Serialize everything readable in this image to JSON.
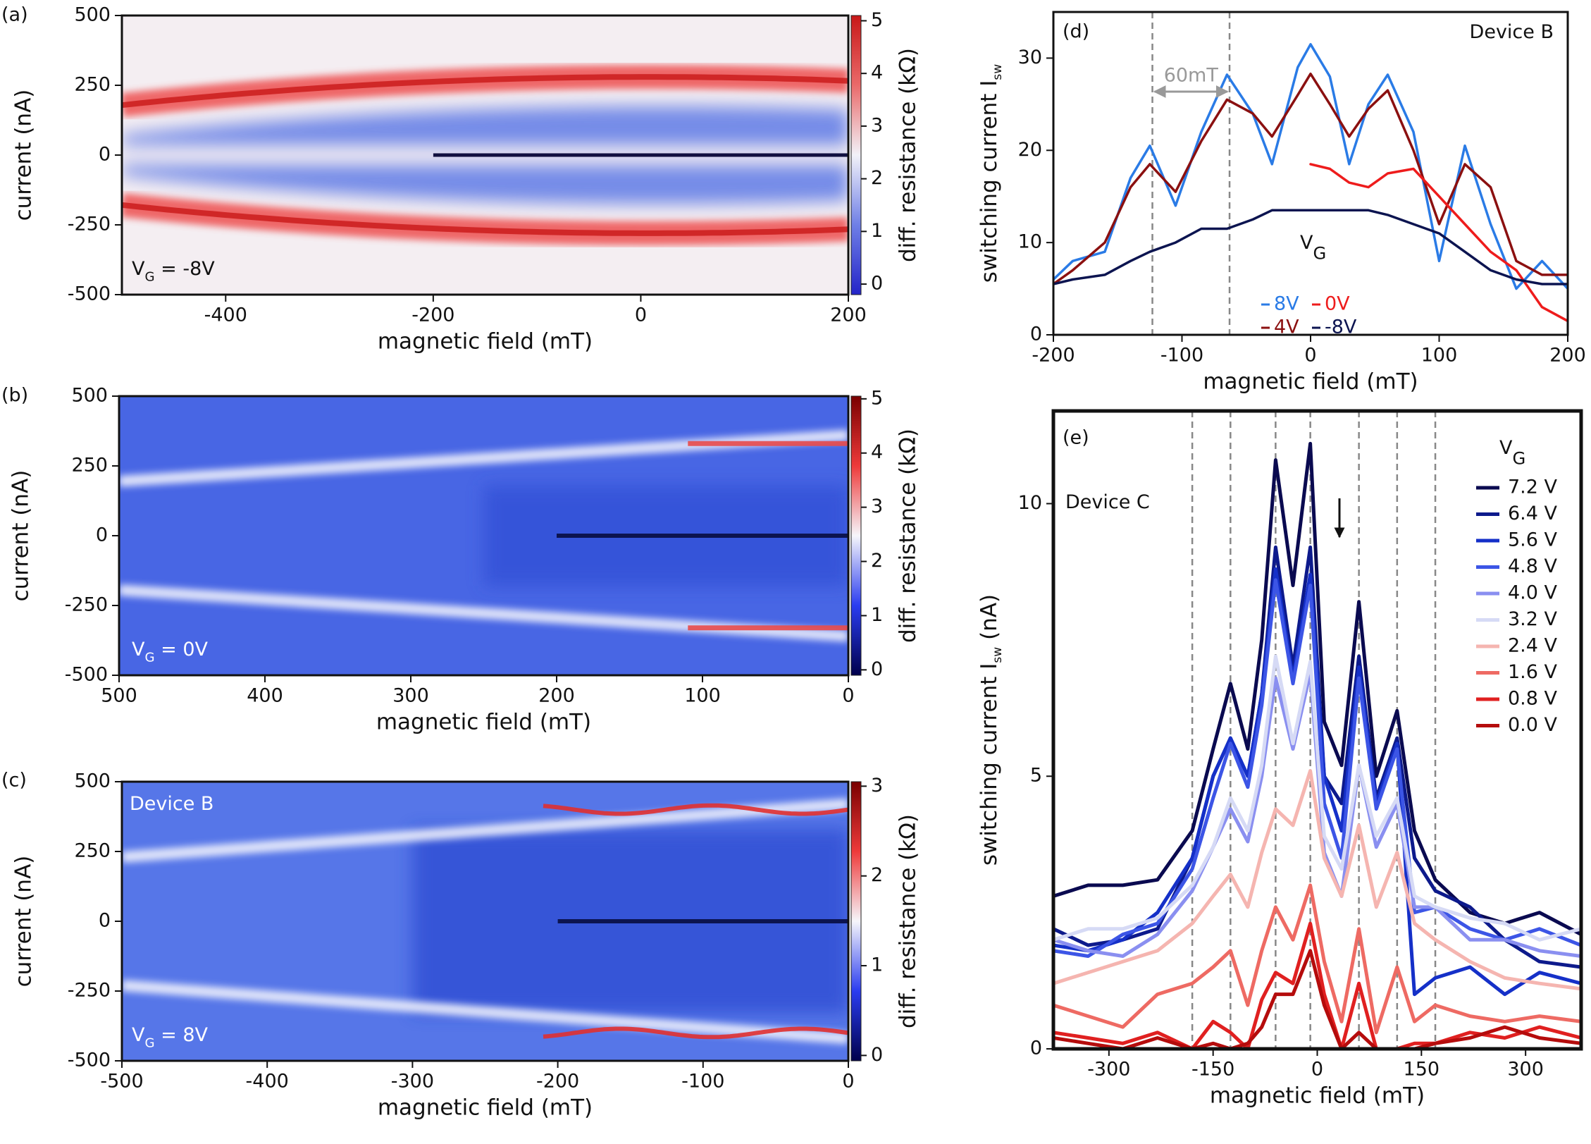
{
  "chart_data": [
    {
      "type": "heatmap",
      "panel_label": "(a)",
      "x_label": "magnetic field (mT)",
      "y_label": "current (nA)",
      "annotations": [
        {
          "main": "V",
          "sub": "G",
          "rest": " = -8V",
          "color": "#111111"
        }
      ],
      "xlim": [
        -500,
        200
      ],
      "ylim": [
        -500,
        500
      ],
      "xticks": [
        -400,
        -200,
        0,
        200
      ],
      "yticks": [
        -500,
        -250,
        0,
        250,
        500
      ],
      "colorbar": {
        "label": "diff. resistance (kΩ)",
        "lim": [
          -0.2,
          5.1
        ],
        "ticks": [
          0,
          1,
          2,
          3,
          4,
          5
        ],
        "colors": [
          "#2424c8",
          "#6f7fe6",
          "#f2f2f8",
          "#ea6a6a",
          "#c81818"
        ]
      }
    },
    {
      "type": "heatmap",
      "panel_label": "(b)",
      "x_label": "magnetic field (mT)",
      "y_label": "current (nA)",
      "annotations": [
        {
          "main": "V",
          "sub": "G",
          "rest": " = 0V",
          "color": "#ffffff"
        }
      ],
      "xlim": [
        500,
        0
      ],
      "ylim": [
        -500,
        500
      ],
      "xticks": [
        500,
        400,
        300,
        200,
        100,
        0
      ],
      "yticks": [
        -500,
        -250,
        0,
        250,
        500
      ],
      "colorbar": {
        "label": "diff. resistance (kΩ)",
        "lim": [
          -0.1,
          5.05
        ],
        "ticks": [
          0,
          1,
          2,
          3,
          4,
          5
        ],
        "colors": [
          "#00004c",
          "#2a3cf0",
          "#f6f6fb",
          "#ee3a3a",
          "#7a0000"
        ]
      }
    },
    {
      "type": "heatmap",
      "panel_label": "(c)",
      "x_label": "magnetic field (mT)",
      "y_label": "current (nA)",
      "annotations": [
        {
          "main": "Device B",
          "color": "#ffffff"
        },
        {
          "main": "V",
          "sub": "G",
          "rest": " = 8V",
          "color": "#ffffff"
        }
      ],
      "xlim": [
        -500,
        0
      ],
      "ylim": [
        -500,
        500
      ],
      "xticks": [
        -500,
        -400,
        -300,
        -200,
        -100,
        0
      ],
      "yticks": [
        -500,
        -250,
        0,
        250,
        500
      ],
      "colorbar": {
        "label": "diff. resistance (kΩ)",
        "lim": [
          -0.06,
          3.05
        ],
        "ticks": [
          0,
          1,
          2,
          3
        ],
        "colors": [
          "#00004c",
          "#2a3cf0",
          "#f6f6fb",
          "#ee3a3a",
          "#7a0000"
        ]
      }
    },
    {
      "type": "line",
      "panel_label": "(d)",
      "x_label": "magnetic field (mT)",
      "y_label": {
        "main": "switching current  I",
        "sub": "sw"
      },
      "annotations": [
        {
          "main": "Device B",
          "color": "#111111"
        }
      ],
      "span_label": "60mT",
      "legend_title": {
        "main": "V",
        "sub": "G"
      },
      "xlim": [
        -200,
        200
      ],
      "ylim": [
        0,
        35
      ],
      "xticks": [
        -200,
        -100,
        0,
        100,
        200
      ],
      "yticks": [
        0,
        10,
        20,
        30
      ],
      "vlines": [
        -123,
        -63
      ],
      "x": [
        -200,
        -185,
        -160,
        -140,
        -125,
        -105,
        -85,
        -65,
        -45,
        -30,
        -10,
        0,
        15,
        30,
        45,
        60,
        80,
        100,
        120,
        140,
        160,
        180,
        200
      ],
      "series": [
        {
          "name": "8V",
          "color": "#2a7be6",
          "values": [
            6,
            8,
            9,
            17,
            20.5,
            14,
            22,
            28.2,
            24,
            18.5,
            29,
            31.5,
            28,
            18.5,
            25,
            28.2,
            22,
            8,
            20.5,
            12,
            5,
            8,
            5
          ]
        },
        {
          "name": "4V",
          "color": "#8b1010",
          "values": [
            5.5,
            7,
            10,
            16,
            18.5,
            15.5,
            21,
            25.5,
            24,
            21.5,
            26,
            28.3,
            25,
            21.5,
            24.5,
            26.5,
            20,
            12,
            18.5,
            16,
            8,
            6.5,
            6.5
          ]
        },
        {
          "name": "0V",
          "color": "#ee1c1c",
          "values": [
            null,
            null,
            null,
            null,
            null,
            null,
            null,
            null,
            null,
            null,
            null,
            18.5,
            18,
            16.5,
            16,
            17.5,
            18,
            15,
            12,
            9,
            7,
            3,
            1.5
          ]
        },
        {
          "name": "-8V",
          "color": "#0c1450",
          "values": [
            5.5,
            6,
            6.5,
            8,
            9,
            10,
            11.5,
            11.5,
            12.5,
            13.5,
            13.5,
            13.5,
            13.5,
            13.5,
            13.5,
            13,
            12,
            11,
            9,
            7,
            6,
            5.5,
            5.5
          ]
        }
      ]
    },
    {
      "type": "line",
      "panel_label": "(e)",
      "x_label": "magnetic field (mT)",
      "y_label": {
        "main": "switching current  I",
        "sub": "sw",
        "rest": " (nA)"
      },
      "annotations": [
        {
          "main": "Device C",
          "color": "#111111"
        }
      ],
      "legend_title": {
        "main": "V",
        "sub": "G"
      },
      "xlim": [
        -380,
        380
      ],
      "ylim": [
        0,
        11.7
      ],
      "xticks": [
        -300,
        -150,
        0,
        150,
        300
      ],
      "yticks": [
        0,
        5,
        10
      ],
      "vlines": [
        -180,
        -125,
        -60,
        -10,
        60,
        115,
        170
      ],
      "x": [
        -380,
        -330,
        -280,
        -230,
        -180,
        -150,
        -125,
        -100,
        -80,
        -60,
        -35,
        -10,
        10,
        35,
        60,
        85,
        115,
        140,
        170,
        220,
        270,
        320,
        380
      ],
      "series": [
        {
          "name": "7.2 V",
          "color": "#0a0a50",
          "values": [
            2.8,
            3.0,
            3.0,
            3.1,
            4.0,
            5.5,
            6.7,
            5.5,
            7.5,
            10.8,
            8.5,
            11.1,
            6.0,
            5.2,
            8.2,
            5.0,
            6.2,
            4.0,
            3.1,
            2.5,
            2.3,
            2.5,
            2.1
          ]
        },
        {
          "name": "6.4 V",
          "color": "#0d1a8c",
          "values": [
            2.2,
            1.9,
            2.0,
            2.2,
            3.5,
            5.0,
            5.7,
            5.0,
            6.5,
            9.2,
            7.0,
            9.2,
            5.0,
            4.5,
            7.2,
            4.6,
            5.7,
            3.5,
            2.9,
            2.6,
            2.0,
            1.6,
            1.5
          ]
        },
        {
          "name": "5.6 V",
          "color": "#1530c8",
          "values": [
            1.9,
            1.8,
            2.0,
            2.5,
            3.5,
            5.0,
            5.7,
            5.0,
            6.5,
            8.8,
            6.8,
            8.7,
            5.0,
            4.0,
            7.0,
            4.5,
            5.6,
            1.0,
            1.3,
            1.5,
            1.0,
            1.4,
            1.2
          ]
        },
        {
          "name": "4.8 V",
          "color": "#3c55e6",
          "values": [
            1.8,
            1.7,
            2.1,
            2.3,
            3.3,
            4.6,
            5.6,
            4.8,
            6.3,
            8.6,
            6.7,
            8.5,
            4.5,
            3.5,
            6.8,
            4.4,
            5.5,
            2.5,
            2.6,
            2.2,
            2.0,
            2.2,
            1.9
          ]
        },
        {
          "name": "4.0 V",
          "color": "#8a8ff0",
          "values": [
            2.0,
            1.8,
            1.7,
            2.1,
            2.9,
            3.7,
            4.4,
            3.8,
            5.0,
            6.8,
            5.5,
            6.9,
            3.6,
            2.8,
            5.2,
            3.7,
            4.5,
            2.6,
            2.6,
            2.0,
            2.0,
            1.8,
            1.7
          ]
        },
        {
          "name": "3.2 V",
          "color": "#d6daf5",
          "values": [
            2.0,
            2.2,
            2.2,
            2.4,
            3.0,
            3.7,
            4.6,
            4.0,
            5.2,
            7.2,
            5.6,
            7.1,
            3.9,
            3.3,
            5.2,
            3.9,
            4.6,
            2.8,
            2.6,
            2.4,
            2.3,
            2.0,
            2.2
          ]
        },
        {
          "name": "2.4 V",
          "color": "#f5b5b0",
          "values": [
            1.2,
            1.4,
            1.6,
            1.8,
            2.3,
            2.8,
            3.2,
            2.6,
            3.6,
            4.4,
            4.1,
            5.1,
            3.5,
            2.8,
            4.1,
            2.6,
            3.6,
            2.3,
            2.0,
            1.6,
            1.3,
            1.2,
            1.1
          ]
        },
        {
          "name": "1.6 V",
          "color": "#ee6a63",
          "values": [
            0.8,
            0.6,
            0.4,
            1.0,
            1.2,
            1.5,
            1.8,
            0.8,
            1.8,
            2.6,
            2.0,
            3.0,
            1.6,
            0.5,
            2.2,
            0.3,
            1.5,
            0.5,
            0.8,
            0.6,
            0.5,
            0.6,
            0.5
          ]
        },
        {
          "name": "0.8 V",
          "color": "#e02020",
          "values": [
            0.3,
            0.2,
            0.1,
            0.3,
            0.0,
            0.5,
            0.3,
            0.0,
            0.9,
            1.4,
            1.2,
            2.3,
            1.0,
            0.0,
            1.2,
            0.0,
            0.0,
            0.1,
            0.1,
            0.3,
            0.2,
            0.4,
            0.2
          ]
        },
        {
          "name": "0.0 V",
          "color": "#b50c0c",
          "values": [
            0.2,
            0.1,
            0.0,
            0.2,
            0.0,
            0.1,
            0.0,
            0.1,
            0.4,
            1.0,
            1.0,
            1.8,
            0.8,
            0.0,
            0.3,
            0.0,
            0.0,
            0.0,
            0.1,
            0.2,
            0.4,
            0.2,
            0.1
          ]
        }
      ]
    }
  ]
}
